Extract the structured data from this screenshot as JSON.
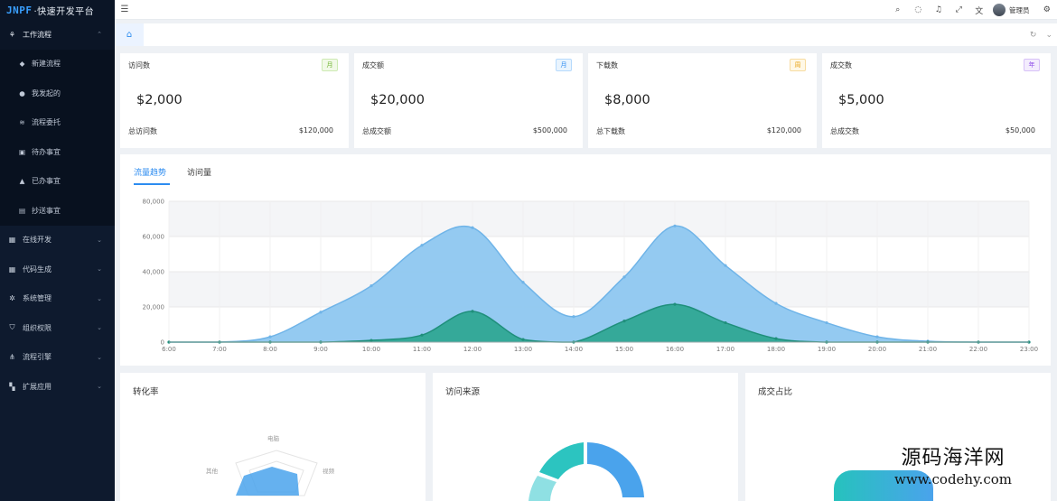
{
  "app": {
    "brand": "JNPF",
    "brand_suffix": "·快速开发平台"
  },
  "sidebar": {
    "items": [
      {
        "label": "工作流程",
        "icon": "workflow-icon",
        "expanded": true,
        "children": [
          {
            "label": "新建流程",
            "icon": "new-flow-icon"
          },
          {
            "label": "我发起的",
            "icon": "user-icon"
          },
          {
            "label": "流程委托",
            "icon": "delegate-icon"
          },
          {
            "label": "待办事宜",
            "icon": "todo-icon"
          },
          {
            "label": "已办事宜",
            "icon": "done-icon"
          },
          {
            "label": "抄送事宜",
            "icon": "cc-icon"
          }
        ]
      },
      {
        "label": "在线开发",
        "icon": "online-dev-icon"
      },
      {
        "label": "代码生成",
        "icon": "code-gen-icon"
      },
      {
        "label": "系统管理",
        "icon": "system-icon"
      },
      {
        "label": "组织权限",
        "icon": "shield-icon"
      },
      {
        "label": "流程引擎",
        "icon": "engine-icon"
      },
      {
        "label": "扩展应用",
        "icon": "apps-icon"
      }
    ]
  },
  "header": {
    "icons": [
      "search-icon",
      "message-icon",
      "bell-icon",
      "fullscreen-icon",
      "translate-icon"
    ],
    "user_name": "管理员",
    "settings_icon": "gear-icon"
  },
  "tabs": {
    "home_icon": "home-icon",
    "refresh_icon": "refresh-icon",
    "more_icon": "chevron-down-icon"
  },
  "stats": [
    {
      "title": "访问数",
      "badge": "月",
      "badge_color": "green",
      "value": "$2,000",
      "foot_label": "总访问数",
      "foot_value": "$120,000"
    },
    {
      "title": "成交额",
      "badge": "月",
      "badge_color": "blue",
      "value": "$20,000",
      "foot_label": "总成交额",
      "foot_value": "$500,000"
    },
    {
      "title": "下载数",
      "badge": "周",
      "badge_color": "orange",
      "value": "$8,000",
      "foot_label": "总下载数",
      "foot_value": "$120,000"
    },
    {
      "title": "成交数",
      "badge": "年",
      "badge_color": "purple",
      "value": "$5,000",
      "foot_label": "总成交数",
      "foot_value": "$50,000"
    }
  ],
  "chart_tabs": [
    "流量趋势",
    "访问量"
  ],
  "chart_data": {
    "type": "area",
    "x": [
      "6:00",
      "7:00",
      "8:00",
      "9:00",
      "10:00",
      "11:00",
      "12:00",
      "13:00",
      "14:00",
      "15:00",
      "16:00",
      "17:00",
      "18:00",
      "19:00",
      "20:00",
      "21:00",
      "22:00",
      "23:00"
    ],
    "series": [
      {
        "color": "#8ec7f0",
        "line": "#6fb4e8",
        "values": [
          0,
          0,
          3000,
          17000,
          32000,
          55000,
          65000,
          34000,
          14500,
          37000,
          66000,
          43500,
          22000,
          11000,
          3000,
          500,
          0,
          0
        ]
      },
      {
        "color": "#2aa58f",
        "line": "#1f8f7b",
        "values": [
          0,
          0,
          0,
          0,
          1000,
          4000,
          17500,
          1500,
          0,
          12000,
          21500,
          11000,
          2000,
          0,
          0,
          0,
          0,
          0
        ]
      }
    ],
    "ylim": [
      0,
      80000
    ],
    "yticks": [
      0,
      20000,
      40000,
      60000,
      80000
    ],
    "ytick_labels": [
      "0",
      "20,000",
      "40,000",
      "60,000",
      "80,000"
    ],
    "x_tick_labels": [
      "6:00",
      "7:00",
      "8:00",
      "9:00",
      "10:00",
      "11:00",
      "12:00",
      "13:00",
      "14:00",
      "15:00",
      "16:00",
      "17:00",
      "18:00",
      "19:00",
      "20:00",
      "21:00",
      "22:00",
      "23:00"
    ],
    "grid": true,
    "legend": false
  },
  "panels": [
    {
      "title": "转化率",
      "radar_labels": [
        "电脑",
        "其他",
        "视频"
      ]
    },
    {
      "title": "访问来源"
    },
    {
      "title": "成交占比"
    }
  ],
  "colors": {
    "sidebar_bg": "#0e1a2e",
    "accent": "#2d8cf0",
    "area_light": "#8ec7f0",
    "area_dark": "#2aa58f"
  },
  "watermark": {
    "text": "源码海洋网",
    "url": "www.codehy.com"
  }
}
